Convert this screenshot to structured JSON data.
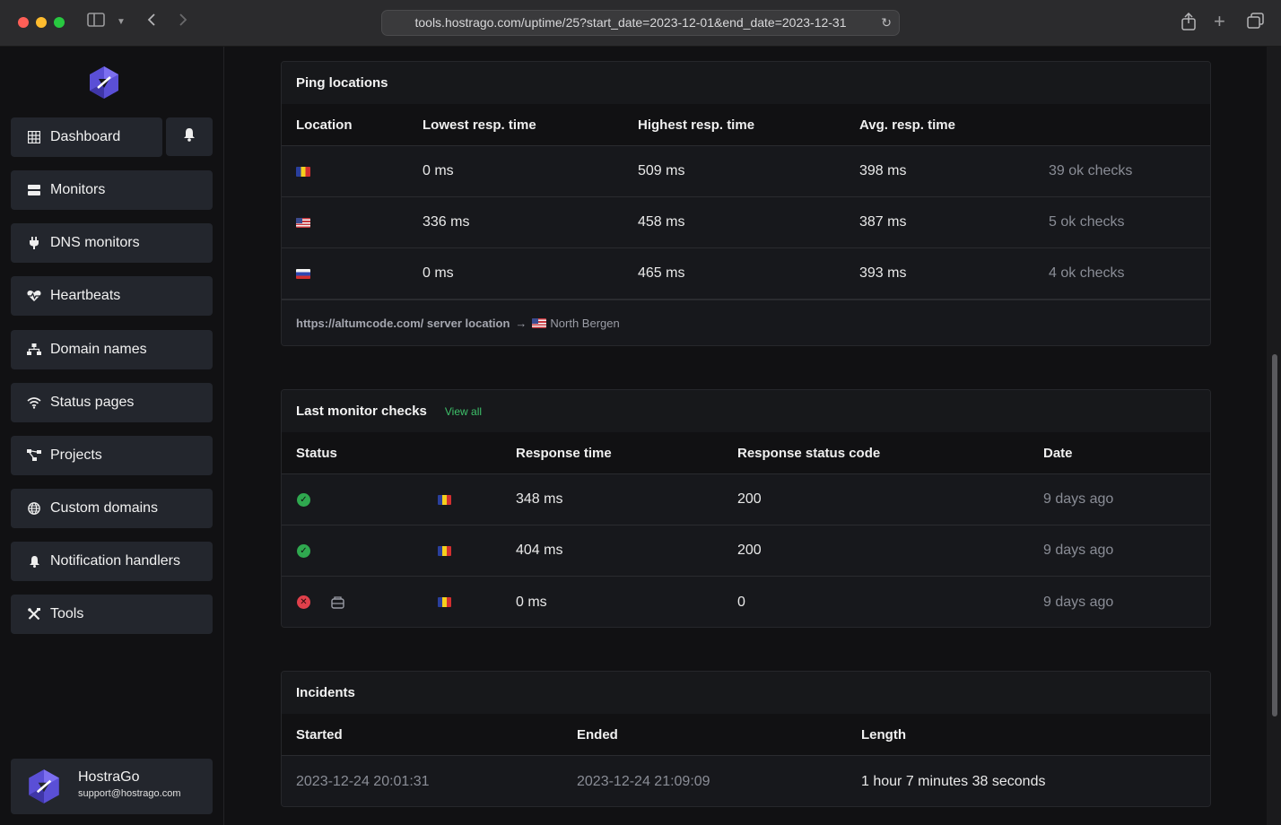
{
  "browser": {
    "url": "tools.hostrago.com/uptime/25?start_date=2023-12-01&end_date=2023-12-31"
  },
  "sidebar": {
    "items": [
      {
        "label": "Dashboard",
        "icon": "grid-icon"
      },
      {
        "label": "Monitors",
        "icon": "server-icon"
      },
      {
        "label": "DNS monitors",
        "icon": "plug-icon"
      },
      {
        "label": "Heartbeats",
        "icon": "heart-pulse-icon"
      },
      {
        "label": "Domain names",
        "icon": "network-icon"
      },
      {
        "label": "Status pages",
        "icon": "wifi-icon"
      },
      {
        "label": "Projects",
        "icon": "project-diagram-icon"
      },
      {
        "label": "Custom domains",
        "icon": "globe-icon"
      },
      {
        "label": "Notification handlers",
        "icon": "bell-icon"
      },
      {
        "label": "Tools",
        "icon": "tools-icon"
      }
    ],
    "user": {
      "name": "HostraGo",
      "email": "support@hostrago.com"
    }
  },
  "ping_locations": {
    "title": "Ping locations",
    "columns": [
      "Location",
      "Lowest resp. time",
      "Highest resp. time",
      "Avg. resp. time"
    ],
    "rows": [
      {
        "flag": "ro",
        "lowest": "0 ms",
        "highest": "509 ms",
        "avg": "398 ms",
        "checks": "39 ok checks"
      },
      {
        "flag": "us",
        "lowest": "336 ms",
        "highest": "458 ms",
        "avg": "387 ms",
        "checks": "5 ok checks"
      },
      {
        "flag": "ru",
        "lowest": "0 ms",
        "highest": "465 ms",
        "avg": "393 ms",
        "checks": "4 ok checks"
      }
    ],
    "footer": {
      "link": "https://altumcode.com/ server location",
      "arrow": "→",
      "location": "North Bergen"
    }
  },
  "last_checks": {
    "title": "Last monitor checks",
    "view_all": "View all",
    "columns": [
      "Status",
      "Response time",
      "Response status code",
      "Date"
    ],
    "rows": [
      {
        "status": "ok",
        "response_time": "348 ms",
        "code": "200",
        "date": "9 days ago"
      },
      {
        "status": "ok",
        "response_time": "404 ms",
        "code": "200",
        "date": "9 days ago"
      },
      {
        "status": "error",
        "response_time": "0 ms",
        "code": "0",
        "date": "9 days ago"
      }
    ]
  },
  "incidents": {
    "title": "Incidents",
    "columns": [
      "Started",
      "Ended",
      "Length"
    ],
    "rows": [
      {
        "started": "2023-12-24 20:01:31",
        "ended": "2023-12-24 21:09:09",
        "length": "1 hour 7 minutes 38 seconds"
      }
    ]
  }
}
